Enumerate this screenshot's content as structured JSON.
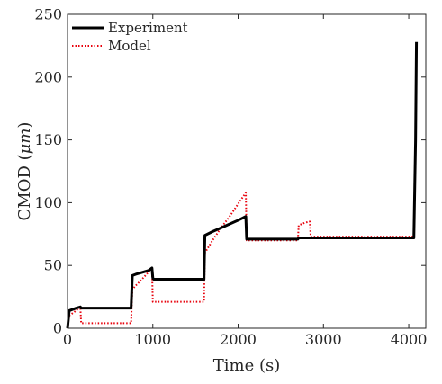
{
  "chart_data": {
    "type": "line",
    "title": "",
    "xlabel": "Time (s)",
    "ylabel": "CMOD (μm)",
    "ylabel_parts": {
      "prefix": "CMOD (",
      "unit": "μm",
      "suffix": ")"
    },
    "xlim": [
      0,
      4200
    ],
    "ylim": [
      0,
      250
    ],
    "xticks": [
      0,
      1000,
      2000,
      3000,
      4000
    ],
    "yticks": [
      0,
      50,
      100,
      150,
      200,
      250
    ],
    "grid": false,
    "legend_position": "top-left",
    "series": [
      {
        "name": "Experiment",
        "color": "#000000",
        "style": "solid",
        "x": [
          0,
          20,
          100,
          150,
          160,
          500,
          745,
          760,
          800,
          900,
          950,
          990,
          1000,
          1010,
          1600,
          1610,
          1700,
          1800,
          1900,
          2000,
          2090,
          2100,
          2110,
          2700,
          2710,
          2800,
          4060,
          4080,
          4090
        ],
        "y": [
          0,
          14,
          16,
          17,
          16,
          16,
          16,
          42,
          43,
          45,
          46,
          48,
          40,
          39,
          39,
          74,
          77,
          80,
          83,
          86,
          89,
          71,
          71,
          71,
          72,
          72,
          72,
          150,
          228
        ]
      },
      {
        "name": "Model",
        "color": "#e8000b",
        "style": "dotted",
        "x": [
          0,
          20,
          100,
          150,
          160,
          500,
          745,
          760,
          800,
          900,
          990,
          1000,
          1010,
          1600,
          1610,
          1700,
          1800,
          1900,
          2000,
          2090,
          2100,
          2110,
          2700,
          2710,
          2780,
          2840,
          2850,
          4060,
          4080,
          4090
        ],
        "y": [
          0,
          10,
          14,
          17,
          4,
          4,
          4,
          31,
          34,
          41,
          48,
          21,
          21,
          21,
          60,
          70,
          80,
          89,
          99,
          108,
          70,
          70,
          70,
          82,
          84,
          85,
          73,
          73,
          150,
          228
        ]
      }
    ]
  }
}
